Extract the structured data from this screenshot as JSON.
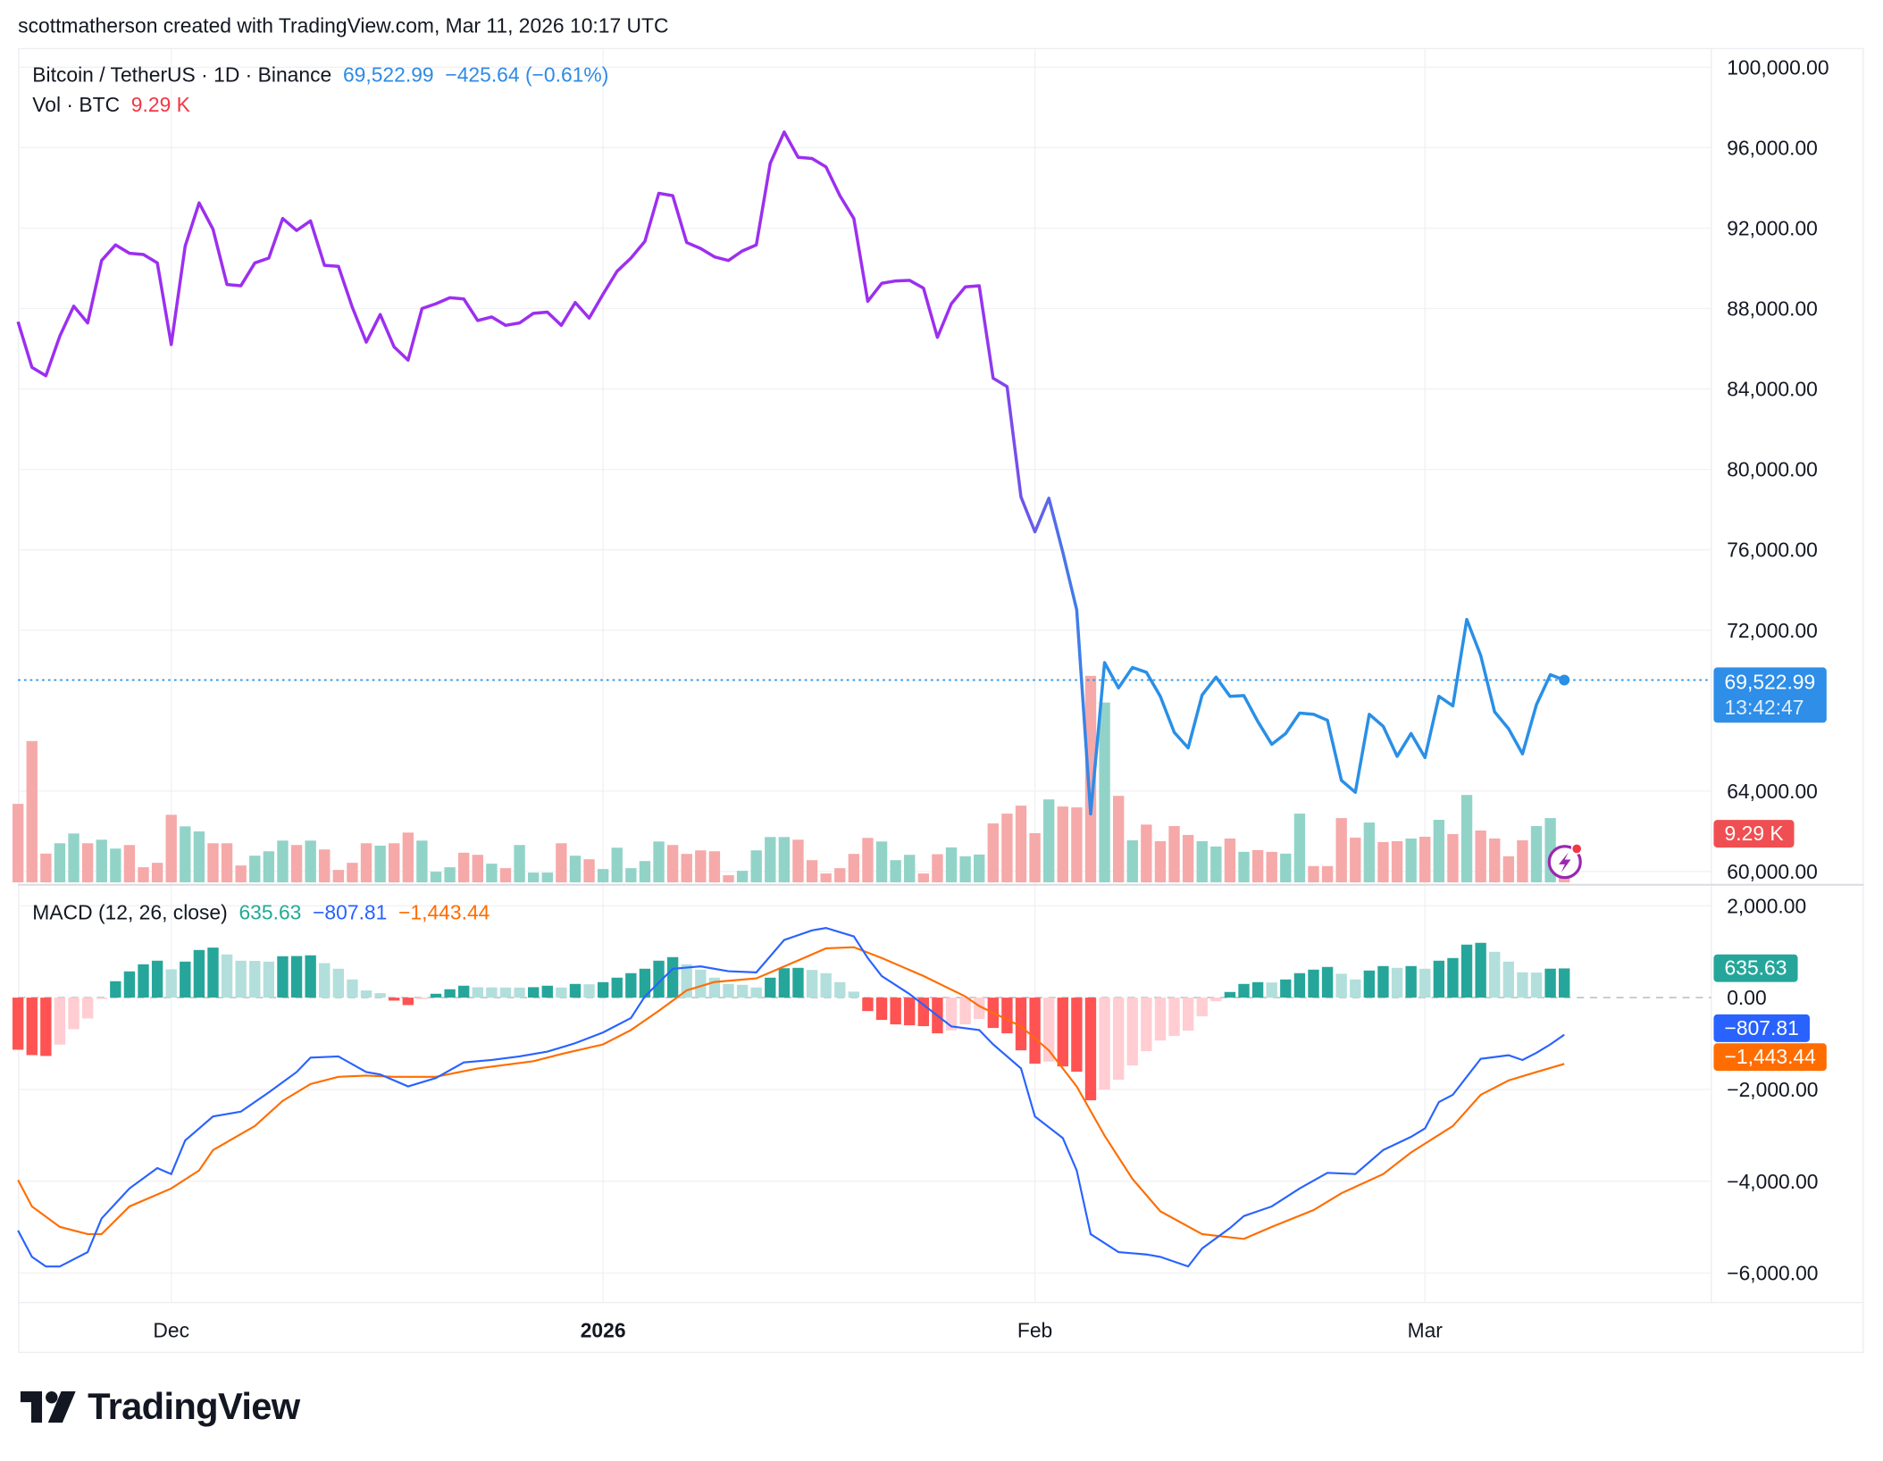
{
  "credit": "scottmatherson created with TradingView.com, Mar 11, 2026 10:17 UTC",
  "legend": {
    "symbol": "Bitcoin / TetherUS · 1D · Binance",
    "last_price": "69,522.99",
    "change": "−425.64 (−0.61%)",
    "vol_label": "Vol · BTC",
    "vol_value": "9.29 K",
    "macd_label": "MACD (12, 26, close)",
    "macd_hist": "635.63",
    "macd_line": "−807.81",
    "macd_signal": "−1,443.44"
  },
  "badges": {
    "price": "69,522.99",
    "countdown": "13:42:47",
    "volume": "9.29 K",
    "hist": "635.63",
    "macd": "−807.81",
    "signal": "−1,443.44"
  },
  "logo": {
    "text": "TradingView"
  },
  "colors": {
    "price_line_start": "#9c2ff0",
    "price_line_end": "#2a8fe6",
    "price_badge": "#2e8ee8",
    "up_volume": "#92d3c8",
    "down_volume": "#f6a9a9",
    "volume_badge": "#ef4f52",
    "hist_up_strong": "#26a69a",
    "hist_up_weak": "#b2dfdb",
    "hist_down_strong": "#ff5252",
    "hist_down_weak": "#ffcdd2",
    "macd_line": "#2962ff",
    "signal_line": "#ff6d00",
    "text_up": "#22ab94",
    "text_blue": "#2e8ae6",
    "text_red": "#f23645"
  },
  "icons": [
    "lightning-alert-icon",
    "tradingview-logo-icon"
  ],
  "chart_data": [
    {
      "type": "line",
      "title": "Bitcoin / TetherUS · 1D · Binance",
      "x_ticks": [
        {
          "date": "2025-12-01",
          "label": "Dec"
        },
        {
          "date": "2026-01-01",
          "label": "2026",
          "bold": true
        },
        {
          "date": "2026-02-01",
          "label": "Feb"
        },
        {
          "date": "2026-03-01",
          "label": "Mar"
        }
      ],
      "y_ticks": [
        {
          "value": 100000,
          "label": "100,000.00"
        },
        {
          "value": 96000,
          "label": "96,000.00"
        },
        {
          "value": 92000,
          "label": "92,000.00"
        },
        {
          "value": 88000,
          "label": "88,000.00"
        },
        {
          "value": 84000,
          "label": "84,000.00"
        },
        {
          "value": 80000,
          "label": "80,000.00"
        },
        {
          "value": 76000,
          "label": "76,000.00"
        },
        {
          "value": 72000,
          "label": "72,000.00"
        },
        {
          "value": 64000,
          "label": "64,000.00"
        },
        {
          "value": 60000,
          "label": "60,000.00"
        }
      ],
      "ylim": [
        58000,
        100500
      ],
      "grid": true,
      "dates": [
        "2025-11-20",
        "2025-11-21",
        "2025-11-22",
        "2025-11-23",
        "2025-11-24",
        "2025-11-25",
        "2025-11-26",
        "2025-11-27",
        "2025-11-28",
        "2025-11-29",
        "2025-11-30",
        "2025-12-01",
        "2025-12-02",
        "2025-12-03",
        "2025-12-04",
        "2025-12-05",
        "2025-12-06",
        "2025-12-07",
        "2025-12-08",
        "2025-12-09",
        "2025-12-10",
        "2025-12-11",
        "2025-12-12",
        "2025-12-13",
        "2025-12-14",
        "2025-12-15",
        "2025-12-16",
        "2025-12-17",
        "2025-12-18",
        "2025-12-19",
        "2025-12-20",
        "2025-12-21",
        "2025-12-22",
        "2025-12-23",
        "2025-12-24",
        "2025-12-25",
        "2025-12-26",
        "2025-12-27",
        "2025-12-28",
        "2025-12-29",
        "2025-12-30",
        "2025-12-31",
        "2026-01-01",
        "2026-01-02",
        "2026-01-03",
        "2026-01-04",
        "2026-01-05",
        "2026-01-06",
        "2026-01-07",
        "2026-01-08",
        "2026-01-09",
        "2026-01-10",
        "2026-01-11",
        "2026-01-12",
        "2026-01-13",
        "2026-01-14",
        "2026-01-15",
        "2026-01-16",
        "2026-01-17",
        "2026-01-18",
        "2026-01-19",
        "2026-01-20",
        "2026-01-21",
        "2026-01-22",
        "2026-01-23",
        "2026-01-24",
        "2026-01-25",
        "2026-01-26",
        "2026-01-27",
        "2026-01-28",
        "2026-01-29",
        "2026-01-30",
        "2026-01-31",
        "2026-02-01",
        "2026-02-02",
        "2026-02-03",
        "2026-02-04",
        "2026-02-05",
        "2026-02-06",
        "2026-02-07",
        "2026-02-08",
        "2026-02-09",
        "2026-02-10",
        "2026-02-11",
        "2026-02-12",
        "2026-02-13",
        "2026-02-14",
        "2026-02-15",
        "2026-02-16",
        "2026-02-17",
        "2026-02-18",
        "2026-02-19",
        "2026-02-20",
        "2026-02-21",
        "2026-02-22",
        "2026-02-23",
        "2026-02-24",
        "2026-02-25",
        "2026-02-26",
        "2026-02-27",
        "2026-02-28",
        "2026-03-01",
        "2026-03-02",
        "2026-03-03",
        "2026-03-04",
        "2026-03-05",
        "2026-03-06",
        "2026-03-07",
        "2026-03-08",
        "2026-03-09",
        "2026-03-10",
        "2026-03-11"
      ],
      "close": [
        87343,
        85074,
        84656,
        86627,
        88119,
        87283,
        90388,
        91164,
        90746,
        90686,
        90268,
        86209,
        91104,
        93253,
        91940,
        89194,
        89134,
        90268,
        90507,
        92477,
        91880,
        92358,
        90149,
        90100,
        88059,
        86328,
        87701,
        86089,
        85433,
        88000,
        88238,
        88537,
        88477,
        87403,
        87582,
        87164,
        87283,
        87761,
        87821,
        87164,
        88298,
        87522,
        88716,
        89850,
        90507,
        91343,
        93731,
        93611,
        91283,
        90985,
        90567,
        90388,
        90865,
        91164,
        95223,
        96776,
        95522,
        95462,
        95044,
        93611,
        92477,
        88358,
        89253,
        89373,
        89400,
        89015,
        86567,
        88238,
        89074,
        89134,
        84537,
        84119,
        78627,
        76895,
        78567,
        75881,
        73015,
        62866,
        70388,
        69134,
        70149,
        69910,
        68716,
        66925,
        66149,
        68776,
        69672,
        68716,
        68750,
        67463,
        66328,
        66866,
        67881,
        67821,
        67522,
        64537,
        63940,
        67821,
        67224,
        65731,
        66866,
        65672,
        68716,
        68239,
        72537,
        70746,
        67940,
        67105,
        65851,
        68299,
        69791,
        69522.99
      ],
      "volume_k": [
        53,
        95.4,
        19.4,
        26.4,
        33,
        26.4,
        28.8,
        22.8,
        25.2,
        10.2,
        13.2,
        45.6,
        37.8,
        34.4,
        26.4,
        26.4,
        11.4,
        18,
        21,
        28.2,
        25.2,
        28.2,
        22.2,
        8.4,
        13.2,
        26.4,
        24.8,
        26.4,
        33.6,
        28.2,
        7.2,
        10.2,
        20,
        18.6,
        12.6,
        9.6,
        25.2,
        6.6,
        6.6,
        26.4,
        18,
        15.6,
        9,
        23.4,
        9.6,
        14.4,
        27.6,
        25.2,
        19.2,
        21.6,
        21,
        4.8,
        7.8,
        21.6,
        30.6,
        30.6,
        28.8,
        15,
        6,
        9.6,
        19.2,
        30,
        27.6,
        15,
        18.6,
        6,
        19,
        23.6,
        17.6,
        18.8,
        39.8,
        46.4,
        51.8,
        33.2,
        56,
        51.2,
        50.6,
        139.4,
        121.4,
        58.4,
        28.4,
        39,
        27.8,
        38,
        32,
        27.8,
        24.2,
        29.6,
        20.6,
        21.8,
        20.6,
        19.4,
        46.4,
        11,
        11,
        43.4,
        30.2,
        40.4,
        27.2,
        27.8,
        29.6,
        30.8,
        42.2,
        32.6,
        59,
        35,
        29.6,
        17.6,
        28.4,
        38,
        43.4,
        9.29
      ]
    },
    {
      "type": "bar+line",
      "title": "MACD (12, 26, close)",
      "y_ticks": [
        {
          "value": 2000,
          "label": "2,000.00"
        },
        {
          "value": 0,
          "label": "0.00"
        },
        {
          "value": -2000,
          "label": "−2,000.00"
        },
        {
          "value": -4000,
          "label": "−4,000.00"
        },
        {
          "value": -6000,
          "label": "−6,000.00"
        }
      ],
      "histogram": [
        -1135,
        -1252,
        -1271,
        -1024,
        -687,
        -454,
        -13,
        357,
        571,
        726,
        804,
        616,
        784,
        1037,
        1089,
        940,
        804,
        800,
        784,
        901,
        905,
        921,
        752,
        629,
        395,
        156,
        97,
        -65,
        -162,
        -32,
        84,
        182,
        259,
        225,
        222,
        220,
        218,
        227,
        259,
        220,
        298,
        290,
        337,
        434,
        532,
        629,
        804,
        882,
        726,
        609,
        434,
        298,
        279,
        220,
        434,
        640,
        648,
        603,
        532,
        337,
        130,
        -292,
        -486,
        -583,
        -603,
        -622,
        -778,
        -713,
        -583,
        -467,
        -661,
        -778,
        -1148,
        -1439,
        -1394,
        -1498,
        -1614,
        -2236,
        -2003,
        -1789,
        -1478,
        -1167,
        -934,
        -836,
        -720,
        -408,
        -78,
        123,
        298,
        337,
        330,
        395,
        532,
        609,
        668,
        519,
        395,
        590,
        687,
        648,
        687,
        629,
        804,
        862,
        1154,
        1193,
        998,
        784,
        551,
        545,
        630,
        635.63
      ],
      "macd": [
        [
          "2025-11-20",
          -5071
        ],
        [
          "2025-11-21",
          -5646
        ],
        [
          "2025-11-22",
          -5855
        ],
        [
          "2025-11-23",
          -5855
        ],
        [
          "2025-11-25",
          -5542
        ],
        [
          "2025-11-26",
          -4810
        ],
        [
          "2025-11-28",
          -4156
        ],
        [
          "2025-11-30",
          -3712
        ],
        [
          "2025-12-01",
          -3843
        ],
        [
          "2025-12-02",
          -3111
        ],
        [
          "2025-12-04",
          -2588
        ],
        [
          "2025-12-06",
          -2483
        ],
        [
          "2025-12-08",
          -2065
        ],
        [
          "2025-12-10",
          -1621
        ],
        [
          "2025-12-11",
          -1307
        ],
        [
          "2025-12-13",
          -1281
        ],
        [
          "2025-12-15",
          -1621
        ],
        [
          "2025-12-16",
          -1673
        ],
        [
          "2025-12-18",
          -1934
        ],
        [
          "2025-12-20",
          -1751
        ],
        [
          "2025-12-22",
          -1412
        ],
        [
          "2025-12-24",
          -1359
        ],
        [
          "2025-12-26",
          -1281
        ],
        [
          "2025-12-28",
          -1176
        ],
        [
          "2025-12-30",
          -993
        ],
        [
          "2026-01-01",
          -758
        ],
        [
          "2026-01-03",
          -444
        ],
        [
          "2026-01-04",
          26
        ],
        [
          "2026-01-06",
          627
        ],
        [
          "2026-01-08",
          680
        ],
        [
          "2026-01-10",
          575
        ],
        [
          "2026-01-12",
          549
        ],
        [
          "2026-01-14",
          1255
        ],
        [
          "2026-01-16",
          1464
        ],
        [
          "2026-01-17",
          1516
        ],
        [
          "2026-01-19",
          1333
        ],
        [
          "2026-01-20",
          863
        ],
        [
          "2026-01-21",
          471
        ],
        [
          "2026-01-23",
          78
        ],
        [
          "2026-01-26",
          -627
        ],
        [
          "2026-01-28",
          -706
        ],
        [
          "2026-01-29",
          -1019
        ],
        [
          "2026-01-31",
          -1542
        ],
        [
          "2026-02-01",
          -2588
        ],
        [
          "2026-02-03",
          -3058
        ],
        [
          "2026-02-04",
          -3764
        ],
        [
          "2026-02-05",
          -5150
        ],
        [
          "2026-02-07",
          -5542
        ],
        [
          "2026-02-09",
          -5594
        ],
        [
          "2026-02-10",
          -5646
        ],
        [
          "2026-02-12",
          -5855
        ],
        [
          "2026-02-13",
          -5463
        ],
        [
          "2026-02-15",
          -5019
        ],
        [
          "2026-02-16",
          -4757
        ],
        [
          "2026-02-18",
          -4548
        ],
        [
          "2026-02-20",
          -4156
        ],
        [
          "2026-02-22",
          -3816
        ],
        [
          "2026-02-24",
          -3843
        ],
        [
          "2026-02-26",
          -3320
        ],
        [
          "2026-02-28",
          -3032
        ],
        [
          "2026-03-01",
          -2849
        ],
        [
          "2026-03-02",
          -2274
        ],
        [
          "2026-03-03",
          -2117
        ],
        [
          "2026-03-05",
          -1333
        ],
        [
          "2026-03-07",
          -1255
        ],
        [
          "2026-03-08",
          -1359
        ],
        [
          "2026-03-09",
          -1202
        ],
        [
          "2026-03-10",
          -1019
        ],
        [
          "2026-03-11",
          -807.81
        ]
      ],
      "signal": [
        [
          "2025-11-20",
          -3973
        ],
        [
          "2025-11-21",
          -4548
        ],
        [
          "2025-11-23",
          -4993
        ],
        [
          "2025-11-25",
          -5150
        ],
        [
          "2025-11-26",
          -5150
        ],
        [
          "2025-11-28",
          -4548
        ],
        [
          "2025-12-01",
          -4156
        ],
        [
          "2025-12-03",
          -3764
        ],
        [
          "2025-12-04",
          -3320
        ],
        [
          "2025-12-07",
          -2797
        ],
        [
          "2025-12-09",
          -2248
        ],
        [
          "2025-12-11",
          -1882
        ],
        [
          "2025-12-13",
          -1725
        ],
        [
          "2025-12-15",
          -1699
        ],
        [
          "2025-12-17",
          -1725
        ],
        [
          "2025-12-20",
          -1725
        ],
        [
          "2025-12-23",
          -1542
        ],
        [
          "2025-12-27",
          -1385
        ],
        [
          "2025-12-29",
          -1229
        ],
        [
          "2026-01-01",
          -1019
        ],
        [
          "2026-01-03",
          -706
        ],
        [
          "2026-01-05",
          -288
        ],
        [
          "2026-01-07",
          157
        ],
        [
          "2026-01-09",
          340
        ],
        [
          "2026-01-12",
          418
        ],
        [
          "2026-01-15",
          810
        ],
        [
          "2026-01-17",
          1072
        ],
        [
          "2026-01-19",
          1098
        ],
        [
          "2026-01-21",
          863
        ],
        [
          "2026-01-24",
          471
        ],
        [
          "2026-01-27",
          26
        ],
        [
          "2026-01-28",
          -183
        ],
        [
          "2026-01-31",
          -627
        ],
        [
          "2026-02-02",
          -1150
        ],
        [
          "2026-02-04",
          -1934
        ],
        [
          "2026-02-06",
          -3006
        ],
        [
          "2026-02-08",
          -3947
        ],
        [
          "2026-02-10",
          -4653
        ],
        [
          "2026-02-13",
          -5150
        ],
        [
          "2026-02-16",
          -5254
        ],
        [
          "2026-02-18",
          -4993
        ],
        [
          "2026-02-21",
          -4627
        ],
        [
          "2026-02-23",
          -4261
        ],
        [
          "2026-02-26",
          -3843
        ],
        [
          "2026-02-28",
          -3372
        ],
        [
          "2026-03-03",
          -2797
        ],
        [
          "2026-03-05",
          -2117
        ],
        [
          "2026-03-07",
          -1804
        ],
        [
          "2026-03-09",
          -1621
        ],
        [
          "2026-03-11",
          -1443.44
        ]
      ]
    }
  ]
}
